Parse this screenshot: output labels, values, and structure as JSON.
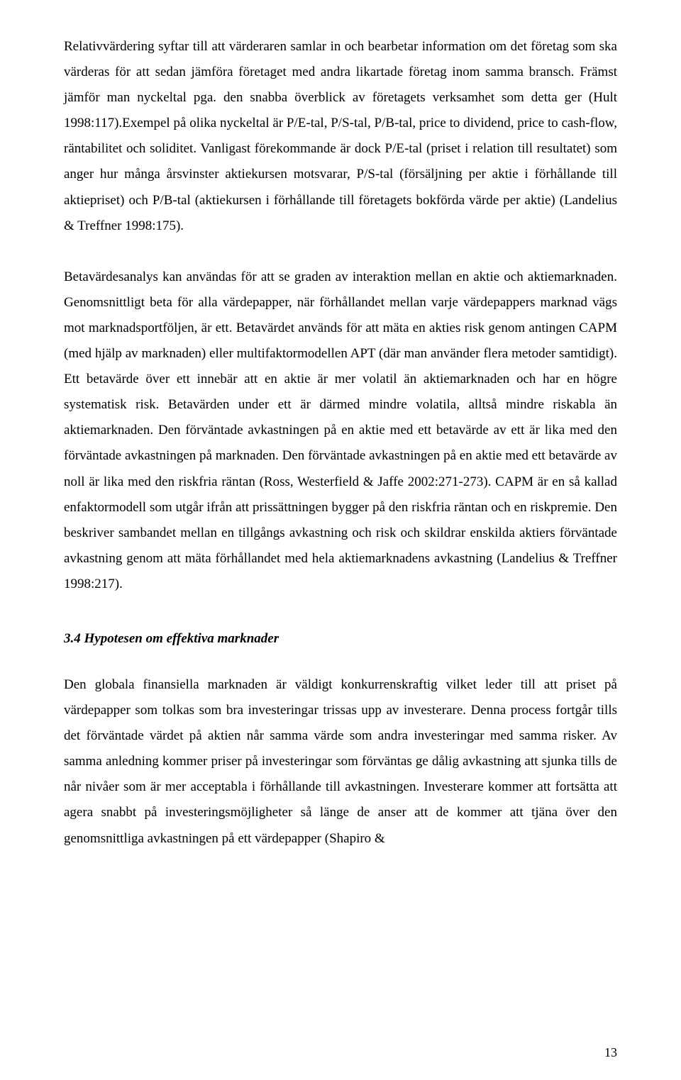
{
  "paragraphs": {
    "p1": "Relativvärdering syftar till att värderaren samlar in och bearbetar information om det företag som ska värderas för att sedan jämföra företaget med andra likartade företag inom samma bransch. Främst jämför man nyckeltal pga. den snabba överblick av företagets verksamhet som detta ger (Hult 1998:117).Exempel på olika nyckeltal är P/E-tal, P/S-tal, P/B-tal, price to dividend, price to cash-flow, räntabilitet och soliditet. Vanligast förekommande är dock P/E-tal (priset i relation till resultatet) som anger hur många årsvinster aktiekursen motsvarar, P/S-tal (försäljning per aktie i förhållande till aktiepriset) och P/B-tal (aktiekursen i förhållande till företagets bokförda värde per aktie) (Landelius & Treffner 1998:175).",
    "p2": "Betavärdesanalys kan användas för att se graden av interaktion mellan en aktie och aktiemarknaden. Genomsnittligt beta för alla värdepapper, när förhållandet mellan varje värdepappers marknad vägs mot marknadsportföljen, är ett. Betavärdet används för att mäta en akties risk genom antingen CAPM (med hjälp av marknaden) eller multifaktormodellen APT (där man använder flera metoder samtidigt). Ett betavärde över ett innebär att en aktie är mer volatil än aktiemarknaden och har en högre systematisk risk. Betavärden under ett är därmed mindre volatila, alltså mindre riskabla än aktiemarknaden. Den förväntade avkastningen på en aktie med ett betavärde av ett är lika med den förväntade avkastningen på marknaden. Den förväntade avkastningen på en aktie med ett betavärde av noll är lika med den riskfria räntan (Ross, Westerfield & Jaffe 2002:271-273). CAPM är en så kallad enfaktormodell som utgår ifrån att prissättningen bygger på den riskfria räntan och en riskpremie. Den beskriver sambandet mellan en tillgångs avkastning och risk och skildrar enskilda aktiers förväntade avkastning genom att mäta förhållandet med hela aktiemarknadens avkastning (Landelius & Treffner 1998:217).",
    "p3": "Den globala finansiella marknaden är väldigt konkurrenskraftig vilket leder till att priset på värdepapper som tolkas som bra investeringar trissas upp av investerare. Denna process fortgår tills det förväntade värdet på aktien når samma värde som andra investeringar med samma risker. Av samma anledning kommer priser på investeringar som förväntas ge dålig avkastning att sjunka tills de når nivåer som är mer acceptabla i förhållande till avkastningen. Investerare kommer att fortsätta att agera snabbt på investeringsmöjligheter så länge de anser att de kommer att tjäna över den genomsnittliga avkastningen på ett värdepapper (Shapiro &"
  },
  "heading": "3.4 Hypotesen om effektiva marknader",
  "pageNumber": "13"
}
